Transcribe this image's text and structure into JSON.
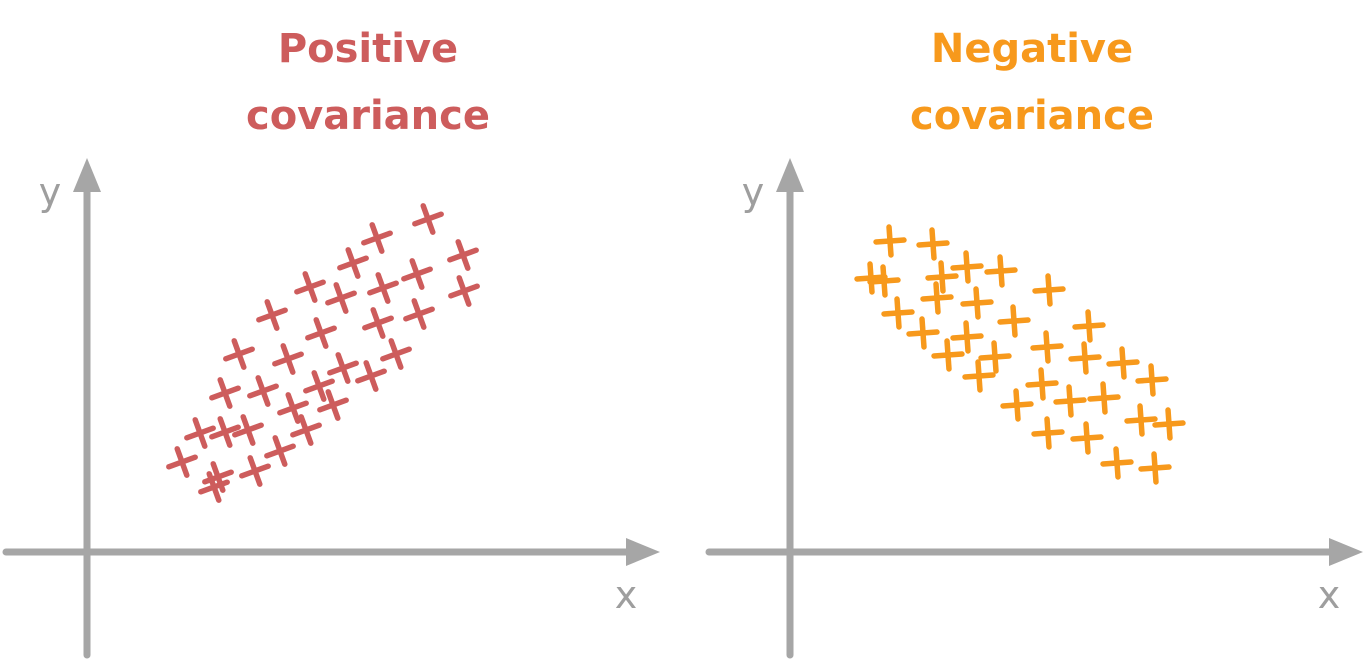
{
  "panels": [
    {
      "title_lines": [
        "Positive",
        "covariance"
      ],
      "color": "#cd5c5c",
      "x_label": "x",
      "y_label": "y",
      "marker": "plus"
    },
    {
      "title_lines": [
        "Negative",
        "covariance"
      ],
      "color": "#f7991c",
      "x_label": "x",
      "y_label": "y",
      "marker": "plus"
    }
  ],
  "axis_color": "#a6a6a6"
}
